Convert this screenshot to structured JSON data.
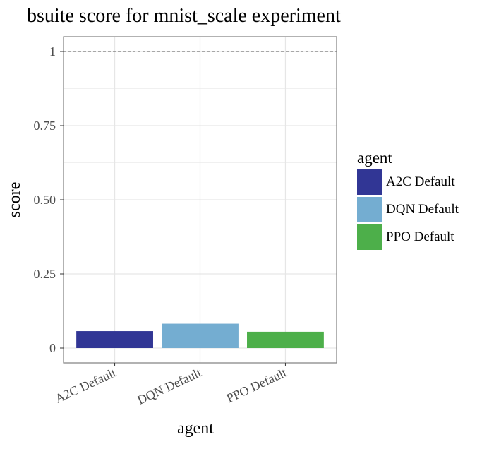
{
  "chart_data": {
    "type": "bar",
    "title": "bsuite score for mnist_scale experiment",
    "xlabel": "agent",
    "ylabel": "score",
    "categories": [
      "A2C Default",
      "DQN Default",
      "PPO Default"
    ],
    "values": [
      0.057,
      0.082,
      0.055
    ],
    "colors": [
      "#313695",
      "#74add1",
      "#4daf4a"
    ],
    "ylim": [
      -0.05,
      1.05
    ],
    "yticks": [
      0,
      0.25,
      0.5,
      0.75,
      1
    ],
    "ytick_labels": [
      "0",
      "0.25",
      "0.50",
      "0.75",
      "1"
    ],
    "reference_line": 1,
    "grid": true,
    "legend": {
      "title": "agent",
      "position": "right",
      "entries": [
        "A2C Default",
        "DQN Default",
        "PPO Default"
      ]
    }
  }
}
